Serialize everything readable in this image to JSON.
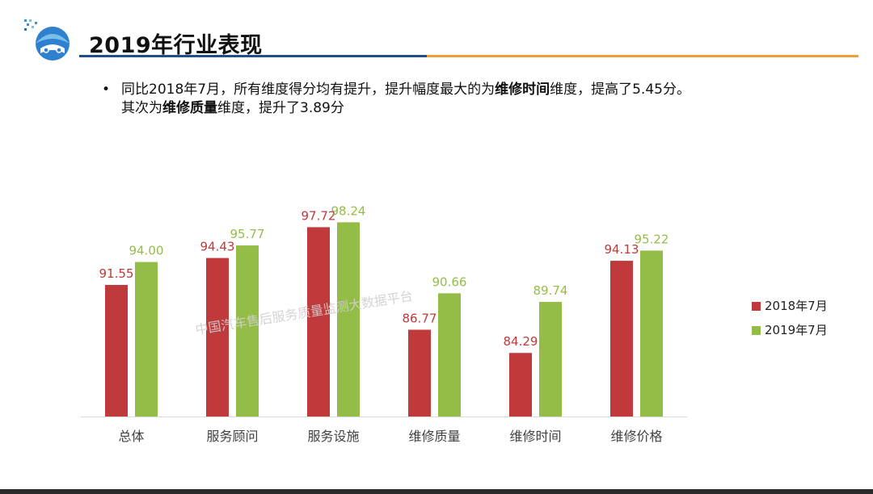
{
  "page": {
    "title": "2019年行业表现",
    "bullet": {
      "line1": [
        "同比2018年7月，所有维度得分均有提升，提升幅度最大的为",
        "维修时间",
        "维度，提高了5.45分。"
      ],
      "line2": [
        "其次为",
        "维修质量",
        "维度，提升了3.89分"
      ]
    },
    "watermark": "中国汽车售后服务质量监测大数据平台"
  },
  "colors": {
    "series_2018": "#c0393b",
    "series_2019": "#94bd48",
    "title_rule_blue": "#1f4e8c",
    "title_rule_orange": "#f0a030"
  },
  "chart_data": {
    "type": "bar",
    "categories": [
      "总体",
      "服务顾问",
      "服务设施",
      "维修质量",
      "维修时间",
      "维修价格"
    ],
    "series": [
      {
        "name": "2018年7月",
        "values": [
          91.55,
          94.43,
          97.72,
          86.77,
          84.29,
          94.13
        ],
        "labels": [
          "91.55",
          "94.43",
          "97.72",
          "86.77",
          "84.29",
          "94.13"
        ]
      },
      {
        "name": "2019年7月",
        "values": [
          94.0,
          95.77,
          98.24,
          90.66,
          89.74,
          95.22
        ],
        "labels": [
          "94.00",
          "95.77",
          "98.24",
          "90.66",
          "89.74",
          "95.22"
        ]
      }
    ],
    "ylim": [
      77.5,
      100
    ],
    "grid": false,
    "legend": "right"
  }
}
